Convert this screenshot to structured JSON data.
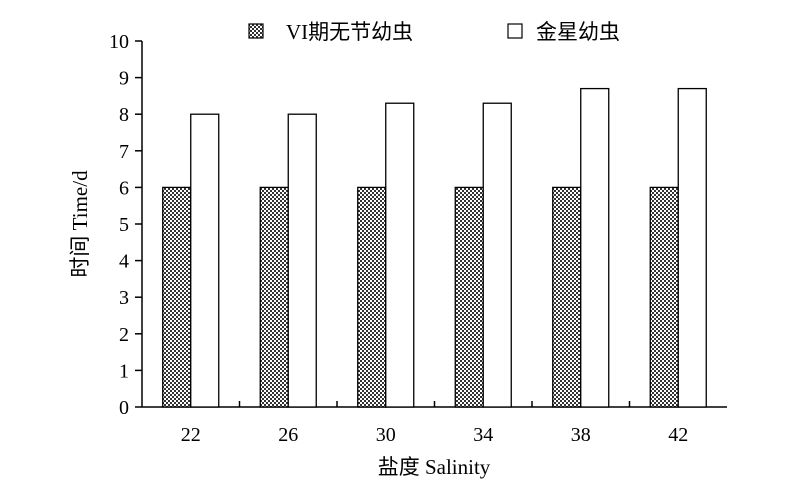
{
  "chart_data": {
    "type": "bar",
    "categories": [
      "22",
      "26",
      "30",
      "34",
      "38",
      "42"
    ],
    "series": [
      {
        "name": "VI期无节幼虫",
        "values": [
          6,
          6,
          6,
          6,
          6,
          6
        ],
        "fill": "checkered",
        "color": "#3a3a3a"
      },
      {
        "name": "金星幼虫",
        "values": [
          8,
          8,
          8.3,
          8.3,
          8.7,
          8.7
        ],
        "fill": "white",
        "color": "#ffffff"
      }
    ],
    "title": "",
    "xlabel": "盐度 Salinity",
    "ylabel": "时间 Time/d",
    "ylim": [
      0,
      10
    ],
    "yticks": [
      "0",
      "1",
      "2",
      "3",
      "4",
      "5",
      "6",
      "7",
      "8",
      "9",
      "10"
    ],
    "grid": false,
    "legend_position": "top"
  }
}
